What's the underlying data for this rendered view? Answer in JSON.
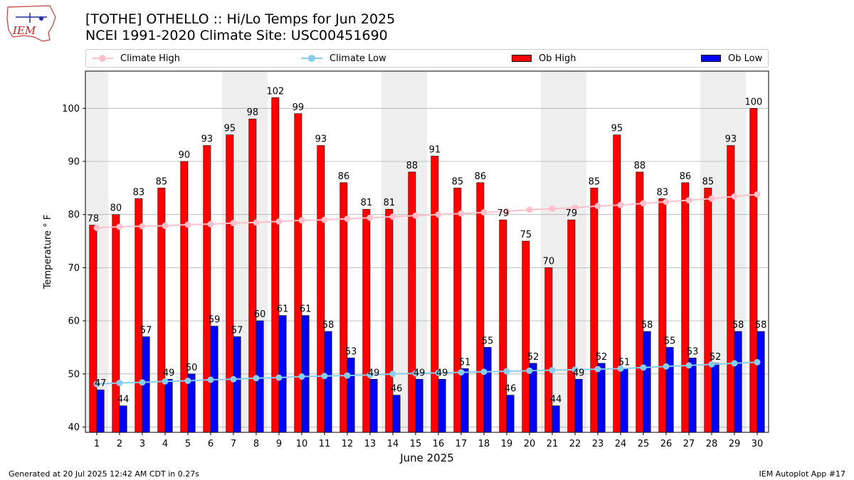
{
  "header": {
    "logo_text": "IEM",
    "title_line1": "[TOTHE] OTHELLO  :: Hi/Lo Temps for Jun 2025",
    "title_line2": "NCEI 1991-2020 Climate Site: USC00451690"
  },
  "legend": {
    "climate_high": "Climate High",
    "climate_low": "Climate Low",
    "ob_high": "Ob High",
    "ob_low": "Ob Low"
  },
  "footer": {
    "left": "Generated at 20 Jul 2025 12:42 AM CDT in 0.27s",
    "right": "IEM Autoplot App #17"
  },
  "colors": {
    "ob_high": "#ff0000",
    "ob_low": "#0000ff",
    "climate_high": "#ffc0cb",
    "climate_low": "#87ceeb",
    "weekend_band": "#eeeeee"
  },
  "chart_data": {
    "type": "bar",
    "xlabel": "June 2025",
    "ylabel": "Temperature ° F",
    "ylim": [
      39,
      107
    ],
    "yticks": [
      40,
      50,
      60,
      70,
      80,
      90,
      100
    ],
    "grid": true,
    "legend_position": "top",
    "categories": [
      1,
      2,
      3,
      4,
      5,
      6,
      7,
      8,
      9,
      10,
      11,
      12,
      13,
      14,
      15,
      16,
      17,
      18,
      19,
      20,
      21,
      22,
      23,
      24,
      25,
      26,
      27,
      28,
      29,
      30
    ],
    "weekend_bands": [
      [
        1,
        1
      ],
      [
        7,
        8
      ],
      [
        14,
        15
      ],
      [
        21,
        22
      ],
      [
        28,
        29
      ]
    ],
    "series": [
      {
        "name": "Ob High",
        "kind": "bar",
        "values": [
          78,
          80,
          83,
          85,
          90,
          93,
          95,
          98,
          102,
          99,
          93,
          86,
          81,
          81,
          88,
          91,
          85,
          86,
          79,
          75,
          70,
          79,
          85,
          95,
          88,
          83,
          86,
          85,
          93,
          100
        ]
      },
      {
        "name": "Ob Low",
        "kind": "bar",
        "values": [
          47,
          44,
          57,
          49,
          50,
          59,
          57,
          60,
          61,
          61,
          58,
          53,
          49,
          46,
          49,
          49,
          51,
          55,
          46,
          52,
          44,
          49,
          52,
          51,
          58,
          55,
          53,
          52,
          58,
          58
        ]
      },
      {
        "name": "Climate High",
        "kind": "line",
        "values": [
          77.5,
          77.7,
          77.8,
          77.9,
          78.1,
          78.2,
          78.4,
          78.5,
          78.7,
          78.9,
          79.0,
          79.2,
          79.4,
          79.6,
          79.8,
          80.0,
          80.2,
          80.4,
          80.6,
          80.9,
          81.1,
          81.3,
          81.6,
          81.8,
          82.1,
          82.4,
          82.7,
          83.0,
          83.4,
          83.8
        ]
      },
      {
        "name": "Climate Low",
        "kind": "line",
        "values": [
          48.1,
          48.3,
          48.4,
          48.6,
          48.7,
          48.9,
          49.0,
          49.2,
          49.3,
          49.5,
          49.6,
          49.7,
          49.8,
          50.0,
          50.1,
          50.2,
          50.3,
          50.4,
          50.5,
          50.6,
          50.7,
          50.8,
          50.9,
          51.0,
          51.2,
          51.4,
          51.6,
          51.8,
          52.0,
          52.2
        ]
      }
    ]
  }
}
